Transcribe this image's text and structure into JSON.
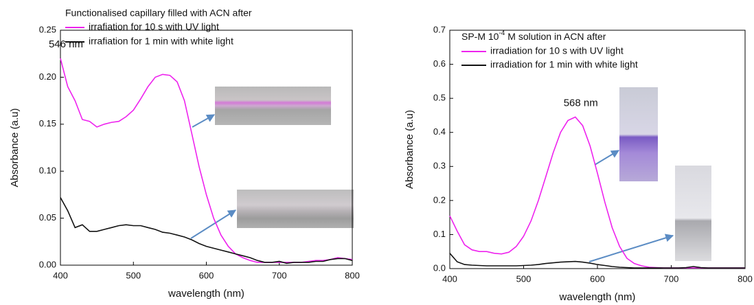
{
  "chart_data": [
    {
      "type": "line",
      "title": "Functionalised capillary filled with ACN after",
      "xlabel": "wavelength (nm)",
      "ylabel": "Absorbance (a.u)",
      "annotation": "546 nm",
      "x": [
        400,
        410,
        420,
        430,
        440,
        450,
        460,
        470,
        480,
        490,
        500,
        510,
        520,
        530,
        540,
        550,
        560,
        570,
        580,
        590,
        600,
        610,
        620,
        630,
        640,
        650,
        660,
        670,
        680,
        690,
        700,
        710,
        720,
        730,
        740,
        750,
        760,
        770,
        780,
        790,
        800
      ],
      "series": [
        {
          "name": "irrafiation for 10 s with UV light",
          "color": "#ee22ee",
          "values": [
            0.22,
            0.19,
            0.175,
            0.155,
            0.153,
            0.147,
            0.15,
            0.152,
            0.153,
            0.158,
            0.165,
            0.177,
            0.19,
            0.2,
            0.203,
            0.202,
            0.195,
            0.175,
            0.14,
            0.105,
            0.075,
            0.05,
            0.032,
            0.02,
            0.012,
            0.008,
            0.005,
            0.003,
            0.003,
            0.003,
            0.003,
            0.003,
            0.003,
            0.003,
            0.004,
            0.005,
            0.005,
            0.006,
            0.008,
            0.007,
            0.006
          ]
        },
        {
          "name": "irrafiation for 1 min with white light",
          "color": "#111111",
          "values": [
            0.072,
            0.058,
            0.04,
            0.043,
            0.036,
            0.036,
            0.038,
            0.04,
            0.042,
            0.043,
            0.042,
            0.042,
            0.04,
            0.038,
            0.035,
            0.034,
            0.032,
            0.03,
            0.027,
            0.023,
            0.02,
            0.018,
            0.016,
            0.014,
            0.012,
            0.01,
            0.008,
            0.005,
            0.003,
            0.003,
            0.004,
            0.002,
            0.003,
            0.003,
            0.003,
            0.004,
            0.004,
            0.006,
            0.007,
            0.007,
            0.005
          ]
        }
      ],
      "xlim": [
        400,
        800
      ],
      "ylim": [
        0,
        0.25
      ],
      "xticks": [
        400,
        500,
        600,
        700,
        800
      ],
      "yticks": [
        {
          "value": 0,
          "label": "0.00"
        },
        0.05,
        {
          "value": 0.1,
          "label": "0.10"
        },
        0.15,
        {
          "value": 0.2,
          "label": "0.20"
        },
        0.25
      ]
    },
    {
      "type": "line",
      "title_parts": [
        "SP-M 10",
        "-4",
        " M solution in ACN after"
      ],
      "xlabel": "wavelength (nm)",
      "ylabel": "Absorbance (a.u)",
      "annotation": "568 nm",
      "x": [
        400,
        410,
        420,
        430,
        440,
        450,
        460,
        470,
        480,
        490,
        500,
        510,
        520,
        530,
        540,
        550,
        560,
        570,
        580,
        590,
        600,
        610,
        620,
        630,
        640,
        650,
        660,
        670,
        680,
        690,
        700,
        710,
        720,
        730,
        740,
        750,
        760,
        770,
        780,
        790,
        800
      ],
      "series": [
        {
          "name": "irradiation for 10 s with UV light",
          "color": "#ee22ee",
          "values": [
            0.155,
            0.11,
            0.07,
            0.055,
            0.05,
            0.05,
            0.045,
            0.043,
            0.048,
            0.065,
            0.095,
            0.14,
            0.2,
            0.27,
            0.34,
            0.4,
            0.435,
            0.445,
            0.42,
            0.36,
            0.28,
            0.195,
            0.12,
            0.065,
            0.03,
            0.015,
            0.008,
            0.004,
            0.003,
            0.002,
            0.002,
            0.002,
            0.002,
            0.002,
            0.002,
            0.002,
            0.002,
            0.002,
            0.002,
            0.002,
            0.002
          ]
        },
        {
          "name": "irradiation for 1 min with white light",
          "color": "#111111",
          "values": [
            0.045,
            0.02,
            0.012,
            0.01,
            0.009,
            0.008,
            0.008,
            0.008,
            0.008,
            0.008,
            0.009,
            0.01,
            0.012,
            0.015,
            0.017,
            0.019,
            0.02,
            0.021,
            0.019,
            0.016,
            0.012,
            0.009,
            0.006,
            0.004,
            0.003,
            0.002,
            0.002,
            0.002,
            0.002,
            0.002,
            0.002,
            0.002,
            0.003,
            0.006,
            0.003,
            0.002,
            0.002,
            0.002,
            0.002,
            0.002,
            0.002
          ]
        }
      ],
      "xlim": [
        400,
        800
      ],
      "ylim": [
        0,
        0.7
      ],
      "xticks": [
        400,
        500,
        600,
        700,
        800
      ],
      "yticks": [
        {
          "value": 0,
          "label": "0.0"
        },
        0.1,
        0.2,
        0.3,
        0.4,
        0.5,
        0.6,
        0.7
      ]
    }
  ]
}
